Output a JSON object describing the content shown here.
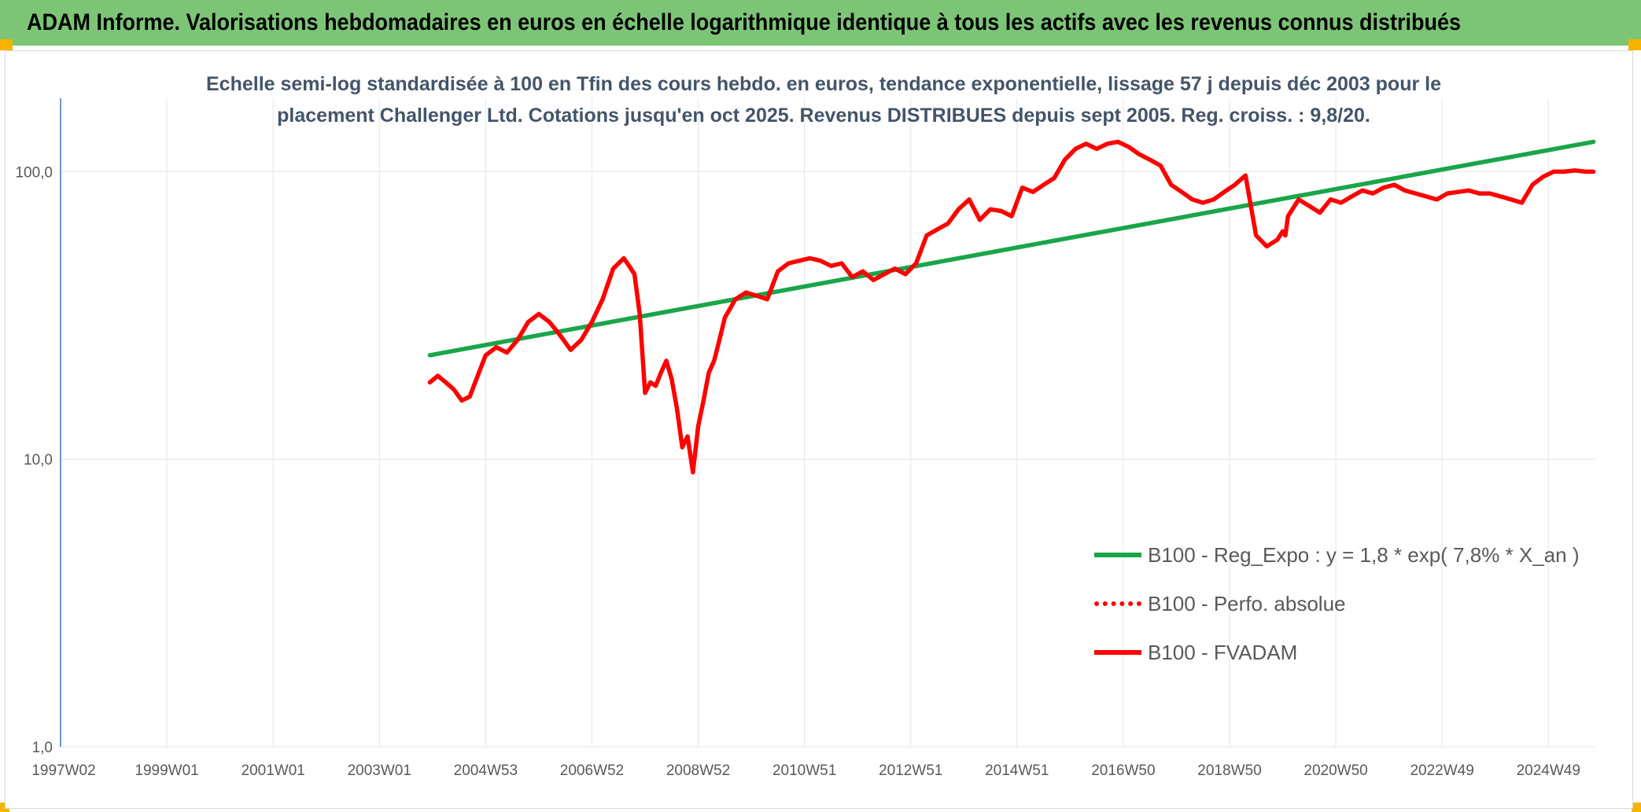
{
  "banner": {
    "title": "ADAM Informe. Valorisations hebdomadaires en euros en échelle logarithmique identique à tous les actifs avec les revenus connus distribués",
    "color": "#7cc576"
  },
  "chart_data": {
    "type": "line",
    "title": "",
    "subtitle_lines": [
      "Echelle semi-log standardisée à 100 en Tfin des cours hebdo. en euros, tendance exponentielle, lissage 57 j depuis déc 2003 pour le",
      "placement Challenger Ltd. Cotations jusqu'en oct 2025. Revenus DISTRIBUES depuis sept 2005. Reg. croiss. : 9,8/20."
    ],
    "xlabel": "",
    "ylabel": "",
    "y_scale": "log",
    "ylim": [
      1,
      180
    ],
    "y_ticks": [
      1,
      10,
      100
    ],
    "y_tick_labels": [
      "1,0",
      "10,0",
      "100,0"
    ],
    "xlim": [
      1997.0,
      2025.87
    ],
    "x_tick_labels": [
      "1997W02",
      "1999W01",
      "2001W01",
      "2003W01",
      "2004W53",
      "2006W52",
      "2008W52",
      "2010W51",
      "2012W51",
      "2014W51",
      "2016W50",
      "2018W50",
      "2020W50",
      "2022W49",
      "2024W49"
    ],
    "x_tick_positions": [
      1997.0,
      1999.0,
      2001.0,
      2003.0,
      2005.0,
      2007.0,
      2009.0,
      2011.0,
      2013.0,
      2015.0,
      2017.0,
      2019.0,
      2021.0,
      2023.0,
      2025.0
    ],
    "grid": "vertical",
    "legend_position": "bottom-right",
    "series": [
      {
        "name": "B100 - Reg_Expo : y = 1,8 * exp( 7,8% *  X_an )",
        "color": "#1aa54a",
        "style": "solid",
        "x": [
          2003.95,
          2025.85
        ],
        "y": [
          23,
          127
        ]
      },
      {
        "name": "B100 - Perfo. absolue",
        "color": "#ff0000",
        "style": "dotted",
        "x": [],
        "y": []
      },
      {
        "name": "B100 - FVADAM",
        "color": "#ff0000",
        "style": "solid",
        "x": [
          2003.95,
          2004.1,
          2004.25,
          2004.4,
          2004.55,
          2004.7,
          2004.85,
          2005.0,
          2005.2,
          2005.4,
          2005.6,
          2005.8,
          2006.0,
          2006.2,
          2006.4,
          2006.6,
          2006.8,
          2007.0,
          2007.2,
          2007.4,
          2007.6,
          2007.7,
          2007.8,
          2007.9,
          2008.0,
          2008.1,
          2008.2,
          2008.3,
          2008.4,
          2008.5,
          2008.6,
          2008.7,
          2008.8,
          2008.9,
          2009.0,
          2009.1,
          2009.2,
          2009.3,
          2009.4,
          2009.5,
          2009.7,
          2009.9,
          2010.1,
          2010.3,
          2010.5,
          2010.7,
          2010.9,
          2011.1,
          2011.3,
          2011.5,
          2011.7,
          2011.9,
          2012.1,
          2012.3,
          2012.5,
          2012.7,
          2012.9,
          2013.1,
          2013.3,
          2013.5,
          2013.7,
          2013.9,
          2014.1,
          2014.3,
          2014.5,
          2014.7,
          2014.9,
          2015.1,
          2015.3,
          2015.5,
          2015.7,
          2015.9,
          2016.1,
          2016.3,
          2016.5,
          2016.7,
          2016.9,
          2017.1,
          2017.3,
          2017.5,
          2017.7,
          2017.9,
          2018.1,
          2018.3,
          2018.5,
          2018.7,
          2018.9,
          2019.1,
          2019.3,
          2019.5,
          2019.7,
          2019.9,
          2020.0,
          2020.05,
          2020.1,
          2020.3,
          2020.5,
          2020.7,
          2020.9,
          2021.1,
          2021.3,
          2021.5,
          2021.7,
          2021.9,
          2022.1,
          2022.3,
          2022.5,
          2022.7,
          2022.9,
          2023.1,
          2023.3,
          2023.5,
          2023.7,
          2023.9,
          2024.1,
          2024.3,
          2024.5,
          2024.7,
          2024.9,
          2025.1,
          2025.3,
          2025.5,
          2025.7,
          2025.85
        ],
        "y": [
          18.5,
          19.5,
          18.5,
          17.5,
          16,
          16.5,
          19.5,
          23,
          24.5,
          23.5,
          26,
          30,
          32,
          30,
          27,
          24,
          26,
          30,
          36,
          46,
          50,
          47,
          44,
          32,
          17,
          18.5,
          18,
          20,
          22,
          19,
          15,
          11,
          12,
          9,
          13,
          16,
          20,
          22,
          26,
          31,
          36,
          38,
          37,
          36,
          45,
          48,
          49,
          50,
          49,
          47,
          48,
          43,
          45,
          42,
          44,
          46,
          44,
          48,
          60,
          63,
          66,
          74,
          80,
          68,
          74,
          73,
          70,
          88,
          85,
          90,
          95,
          110,
          120,
          125,
          120,
          125,
          127,
          122,
          115,
          110,
          105,
          90,
          85,
          80,
          78,
          80,
          85,
          90,
          97,
          60,
          55,
          58,
          62,
          60,
          70,
          80,
          76,
          72,
          80,
          78,
          82,
          86,
          84,
          88,
          90,
          86,
          84,
          82,
          80,
          84,
          85,
          86,
          84,
          84,
          82,
          80,
          78,
          90,
          96,
          100,
          100,
          101,
          100,
          100
        ]
      }
    ]
  }
}
